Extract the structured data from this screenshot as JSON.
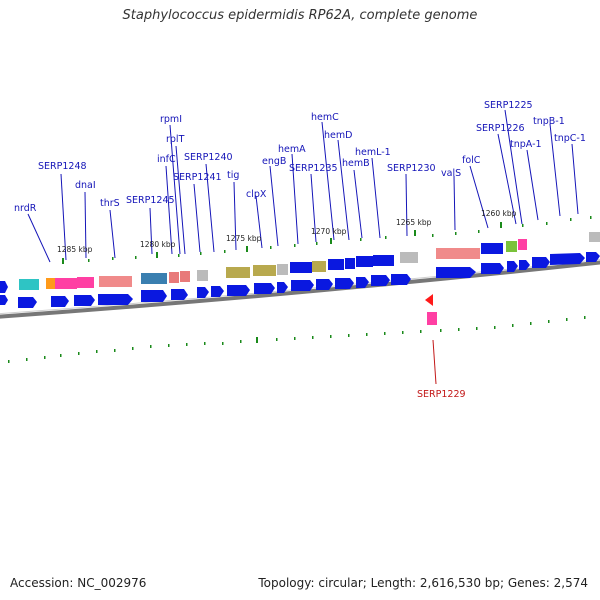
{
  "title": "Staphylococcus epidermidis RP62A, complete genome",
  "footer": {
    "accession": "Accession: NC_002976",
    "summary": "Topology: circular; Length: 2,616,530 bp; Genes: 2,574"
  },
  "colors": {
    "gene_label": "#1515b8",
    "highlight_label": "#c21818",
    "cds_arrow": "#0a18e0",
    "backbone": "#7a7a7a",
    "tick": "#1a8a1a"
  },
  "ruler": [
    {
      "label": "1285 kbp"
    },
    {
      "label": "1280 kbp"
    },
    {
      "label": "1275 kbp"
    },
    {
      "label": "1270 kbp"
    },
    {
      "label": "1265 kbp"
    },
    {
      "label": "1260 kbp"
    }
  ],
  "gene_labels": [
    {
      "label": "nrdR"
    },
    {
      "label": "SERP1248"
    },
    {
      "label": "dnaI"
    },
    {
      "label": "thrS"
    },
    {
      "label": "SERP1245"
    },
    {
      "label": "infC"
    },
    {
      "label": "rpmI"
    },
    {
      "label": "rplT"
    },
    {
      "label": "SERP1241"
    },
    {
      "label": "SERP1240"
    },
    {
      "label": "tig"
    },
    {
      "label": "clpX"
    },
    {
      "label": "engB"
    },
    {
      "label": "hemA"
    },
    {
      "label": "SERP1235"
    },
    {
      "label": "hemC"
    },
    {
      "label": "hemD"
    },
    {
      "label": "hemB"
    },
    {
      "label": "hemL-1"
    },
    {
      "label": "SERP1230"
    },
    {
      "label": "valS"
    },
    {
      "label": "folC"
    },
    {
      "label": "SERP1226"
    },
    {
      "label": "SERP1225"
    },
    {
      "label": "tnpA-1"
    },
    {
      "label": "tnpB-1"
    },
    {
      "label": "tnpC-1"
    }
  ],
  "highlight": {
    "label": "SERP1229"
  },
  "cog_features": [
    {
      "color": "#2ec4c4"
    },
    {
      "color": "#ff9a1a"
    },
    {
      "color": "#ff3fa3"
    },
    {
      "color": "#ff3fa3"
    },
    {
      "color": "#f08a8a"
    },
    {
      "color": "#3a7fb0"
    },
    {
      "color": "#e87a7a"
    },
    {
      "color": "#e87a7a"
    },
    {
      "color": "#bbbbbb"
    },
    {
      "color": "#b8a94e"
    },
    {
      "color": "#b8a94e"
    },
    {
      "color": "#bbbbbb"
    },
    {
      "color": "#0a18e0"
    },
    {
      "color": "#b8a94e"
    },
    {
      "color": "#0a18e0"
    },
    {
      "color": "#0a18e0"
    },
    {
      "color": "#0a18e0"
    },
    {
      "color": "#0a18e0"
    },
    {
      "color": "#bbbbbb"
    },
    {
      "color": "#f08a8a"
    },
    {
      "color": "#0a18e0"
    },
    {
      "color": "#7ac23a"
    },
    {
      "color": "#ff3fa3"
    },
    {
      "color": "#bbbbbb"
    },
    {
      "color": "#ff3fa3"
    },
    {
      "color": "#ff1a3a"
    }
  ]
}
